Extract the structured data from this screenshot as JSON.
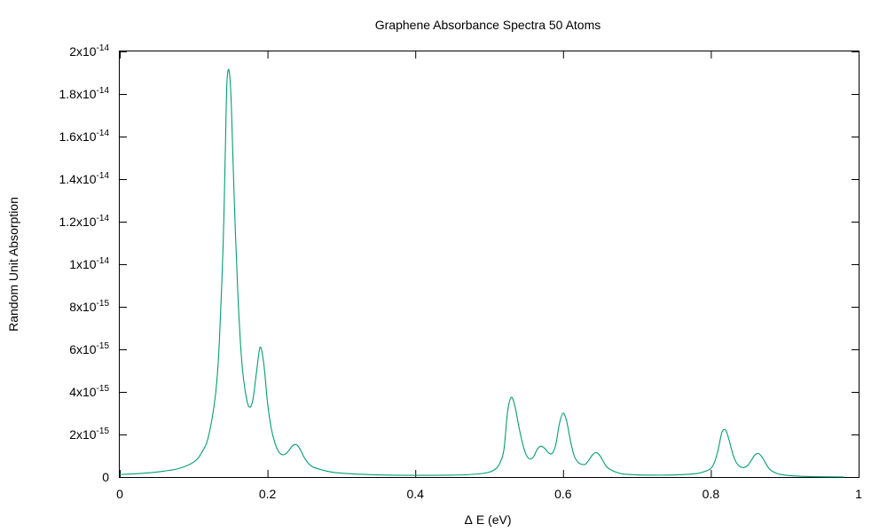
{
  "chart_data": {
    "type": "line",
    "title": "Graphene Absorbance Spectra 50 Atoms",
    "xlabel_symbol": "Δ",
    "xlabel": "E (eV)",
    "ylabel": "Random Unit Absorption",
    "xlim": [
      0,
      1
    ],
    "ylim": [
      0,
      2e-14
    ],
    "grid": false,
    "legend": "none",
    "x_ticks": [
      {
        "value": 0,
        "label": "0"
      },
      {
        "value": 0.2,
        "label": "0.2"
      },
      {
        "value": 0.4,
        "label": "0.4"
      },
      {
        "value": 0.6,
        "label": "0.6"
      },
      {
        "value": 0.8,
        "label": "0.8"
      },
      {
        "value": 1,
        "label": "1"
      }
    ],
    "y_ticks": [
      {
        "value": 0,
        "mantissa": "0",
        "exp": ""
      },
      {
        "value": 2e-15,
        "mantissa": "2x10",
        "exp": "-15"
      },
      {
        "value": 4e-15,
        "mantissa": "4x10",
        "exp": "-15"
      },
      {
        "value": 6e-15,
        "mantissa": "6x10",
        "exp": "-15"
      },
      {
        "value": 8e-15,
        "mantissa": "8x10",
        "exp": "-15"
      },
      {
        "value": 1e-14,
        "mantissa": "1x10",
        "exp": "-14"
      },
      {
        "value": 1.2e-14,
        "mantissa": "1.2x10",
        "exp": "-14"
      },
      {
        "value": 1.4e-14,
        "mantissa": "1.4x10",
        "exp": "-14"
      },
      {
        "value": 1.6e-14,
        "mantissa": "1.6x10",
        "exp": "-14"
      },
      {
        "value": 1.8e-14,
        "mantissa": "1.8x10",
        "exp": "-14"
      },
      {
        "value": 2e-14,
        "mantissa": "2x10",
        "exp": "-14"
      }
    ],
    "series": [
      {
        "color": "#009e73",
        "x": [
          0,
          0.02,
          0.04,
          0.06,
          0.08,
          0.1,
          0.11,
          0.12,
          0.13,
          0.135,
          0.14,
          0.143,
          0.145,
          0.148,
          0.151,
          0.155,
          0.16,
          0.165,
          0.17,
          0.175,
          0.18,
          0.185,
          0.19,
          0.195,
          0.2,
          0.205,
          0.21,
          0.215,
          0.22,
          0.225,
          0.23,
          0.235,
          0.24,
          0.245,
          0.25,
          0.26,
          0.28,
          0.3,
          0.35,
          0.4,
          0.45,
          0.48,
          0.5,
          0.51,
          0.515,
          0.52,
          0.525,
          0.53,
          0.535,
          0.54,
          0.545,
          0.55,
          0.555,
          0.56,
          0.565,
          0.57,
          0.575,
          0.58,
          0.585,
          0.59,
          0.595,
          0.6,
          0.605,
          0.61,
          0.615,
          0.62,
          0.625,
          0.63,
          0.635,
          0.64,
          0.645,
          0.65,
          0.655,
          0.66,
          0.67,
          0.68,
          0.7,
          0.72,
          0.74,
          0.76,
          0.78,
          0.79,
          0.8,
          0.805,
          0.81,
          0.815,
          0.82,
          0.825,
          0.83,
          0.835,
          0.84,
          0.845,
          0.85,
          0.855,
          0.86,
          0.865,
          0.87,
          0.875,
          0.88,
          0.89,
          0.9,
          0.92,
          0.95,
          0.98
        ],
        "y": [
          1.2e-16,
          1.5e-16,
          2e-16,
          2.8e-16,
          4e-16,
          7e-16,
          1.1e-15,
          1.9e-15,
          4e-15,
          6.5e-15,
          1.1e-14,
          1.55e-14,
          1.85e-14,
          1.91e-14,
          1.75e-14,
          1.3e-14,
          8.5e-15,
          5.5e-15,
          4e-15,
          3.3e-15,
          3.6e-15,
          4.9e-15,
          6.1e-15,
          5.3e-15,
          3.5e-15,
          2.3e-15,
          1.6e-15,
          1.2e-15,
          1.05e-15,
          1.1e-15,
          1.3e-15,
          1.5e-15,
          1.5e-15,
          1.25e-15,
          9e-16,
          5e-16,
          2.8e-16,
          1.8e-16,
          1e-16,
          8e-17,
          9e-17,
          1.3e-16,
          2.3e-16,
          4.2e-16,
          7e-16,
          1.3e-15,
          3.1e-15,
          3.75e-15,
          3.3e-15,
          2.4e-15,
          1.6e-15,
          1.05e-15,
          8.5e-16,
          9.5e-16,
          1.3e-15,
          1.45e-15,
          1.35e-15,
          1.15e-15,
          1.1e-15,
          1.5e-15,
          2.5e-15,
          3e-15,
          2.6e-15,
          1.7e-15,
          1e-15,
          7e-16,
          6e-16,
          6e-16,
          8e-16,
          1.05e-15,
          1.15e-15,
          1e-15,
          7e-16,
          4.5e-16,
          2.5e-16,
          1.5e-16,
          1e-16,
          9e-17,
          9e-17,
          1.1e-16,
          1.6e-16,
          2.4e-16,
          4e-16,
          7e-16,
          1.3e-15,
          2.1e-15,
          2.2e-15,
          1.7e-15,
          1.05e-15,
          6.5e-16,
          4.8e-16,
          4.5e-16,
          5.5e-16,
          8e-16,
          1.05e-15,
          1.1e-15,
          9e-16,
          6e-16,
          3.5e-16,
          1.6e-16,
          9e-17,
          4e-17,
          1.5e-17,
          5e-18
        ]
      }
    ]
  }
}
